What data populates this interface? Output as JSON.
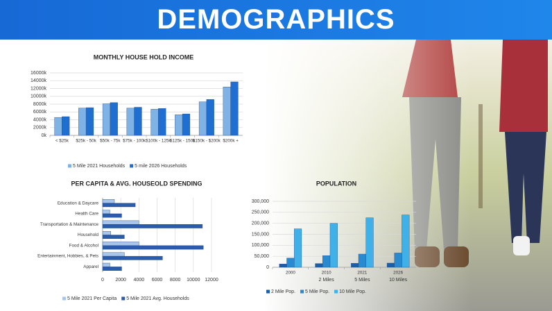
{
  "header": {
    "title": "DEMOGRAPHICS"
  },
  "chart_data": [
    {
      "type": "bar",
      "title": "MONTHLY HOUSE HOLD INCOME",
      "categories": [
        "< $25k",
        "$25k - 50k",
        "$50k - 75k",
        "$75k - 100k",
        "$100k - 125k",
        "$125k - 150k",
        "$150k - $200k",
        "$200k +"
      ],
      "series": [
        {
          "name": "5 Mile 2021 Households",
          "color": "#7fb2e5",
          "values": [
            4600,
            7000,
            8100,
            7000,
            6700,
            5300,
            8600,
            12400
          ]
        },
        {
          "name": "5 mile 2026 Households",
          "color": "#1f6fd1",
          "values": [
            4800,
            7100,
            8400,
            7200,
            6900,
            5500,
            9200,
            13700
          ]
        }
      ],
      "ylim": [
        0,
        16000
      ],
      "yticks": [
        {
          "value": 0,
          "label": "0k"
        },
        {
          "value": 2000,
          "label": "2000k"
        },
        {
          "value": 4000,
          "label": "4000k"
        },
        {
          "value": 6000,
          "label": "6000k"
        },
        {
          "value": 8000,
          "label": "8000k"
        },
        {
          "value": 10000,
          "label": "10000k"
        },
        {
          "value": 12000,
          "label": "12000k"
        },
        {
          "value": 14000,
          "label": "14000k"
        },
        {
          "value": 16000,
          "label": "16000k"
        }
      ],
      "grid": true
    },
    {
      "type": "barh",
      "title": "PER CAPITA & AVG. HOUSEOLD SPENDING",
      "categories": [
        "Education & Daycare",
        "Health Care",
        "Transportation & Maintenance",
        "Household",
        "Food & Alcohol",
        "Entertainment, Hobbies, & Pets",
        "Apparel"
      ],
      "series": [
        {
          "name": "5 Mile 2021 Per Capita",
          "color": "#a9c6ea",
          "values": [
            1300,
            800,
            4000,
            900,
            4000,
            2400,
            800
          ]
        },
        {
          "name": "5 Mile 2021 Avg. Households",
          "color": "#2a5caa",
          "values": [
            3600,
            2100,
            11000,
            2400,
            11100,
            6600,
            2100
          ]
        }
      ],
      "xlim": [
        0,
        12000
      ],
      "xticks": [
        0,
        2000,
        4000,
        6000,
        8000,
        10000,
        12000
      ],
      "grid": true
    },
    {
      "type": "bar",
      "title": "POPULATION",
      "categories": [
        "2000",
        "2010",
        "2021",
        "2026"
      ],
      "x_sublabels": [
        "2 Miles",
        "5 Miles",
        "10 Miles"
      ],
      "series": [
        {
          "name": "2 Mile Pop.",
          "color": "#1c5fa8",
          "values": [
            15000,
            17000,
            18000,
            19000
          ]
        },
        {
          "name": "5 Mile Pop.",
          "color": "#2a8ad0",
          "values": [
            42000,
            53000,
            60000,
            65000
          ]
        },
        {
          "name": "10 Mile Pop.",
          "color": "#3fb1e8",
          "values": [
            175000,
            200000,
            225000,
            238000
          ]
        }
      ],
      "ylim": [
        0,
        300000
      ],
      "yticks": [
        0,
        {
          "value": 50000,
          "label": "50,000"
        },
        {
          "value": 100000,
          "label": "100,000"
        },
        {
          "value": 150000,
          "label": "150,000"
        },
        {
          "value": 200000,
          "label": "200,000"
        },
        {
          "value": 250000,
          "label": "250,000"
        },
        {
          "value": 300000,
          "label": "300,000"
        }
      ],
      "grid": true
    }
  ]
}
